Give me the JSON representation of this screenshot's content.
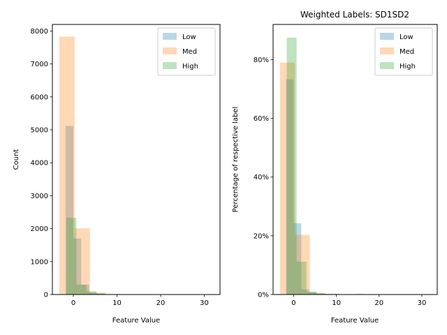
{
  "chart_data": [
    {
      "type": "bar",
      "subtype": "histogram",
      "title": "",
      "xlabel": "Feature Value",
      "ylabel": "Count",
      "xlim": [
        -4.8,
        33.6
      ],
      "ylim": [
        0,
        8200
      ],
      "xticks": [
        0,
        10,
        20,
        30
      ],
      "xtick_labels": [
        "0",
        "10",
        "20",
        "30"
      ],
      "yticks": [
        0,
        1000,
        2000,
        3000,
        4000,
        5000,
        6000,
        7000,
        8000
      ],
      "ytick_labels": [
        "0",
        "1000",
        "2000",
        "3000",
        "4000",
        "5000",
        "6000",
        "7000",
        "8000"
      ],
      "legend": "top-right",
      "series": [
        {
          "name": "Low",
          "color": "#1f77b4",
          "alpha": 0.3,
          "bin_edges": [
            -1.8,
            0.0,
            1.8,
            3.6,
            5.4,
            7.2,
            9.0,
            10.8,
            12.6,
            14.4,
            16.2,
            18.0
          ],
          "values": [
            5120,
            1700,
            300,
            60,
            25,
            10,
            8,
            5,
            4,
            3,
            2
          ]
        },
        {
          "name": "Med",
          "color": "#ff7f0e",
          "alpha": 0.3,
          "bin_edges": [
            -3.2,
            0.3,
            3.8,
            7.3,
            10.8,
            14.3,
            17.8,
            21.3,
            24.8,
            28.3,
            31.8
          ],
          "values": [
            7830,
            2010,
            60,
            15,
            5,
            3,
            2,
            1,
            1,
            1
          ]
        },
        {
          "name": "High",
          "color": "#2ca02c",
          "alpha": 0.3,
          "bin_edges": [
            -1.6,
            0.7,
            3.0,
            5.3,
            7.6,
            9.9,
            12.2,
            14.5
          ],
          "values": [
            2330,
            300,
            100,
            30,
            10,
            5,
            3
          ]
        }
      ]
    },
    {
      "type": "bar",
      "subtype": "histogram",
      "title": "Weighted Labels: SD1SD2",
      "xlabel": "Feature Value",
      "ylabel": "Percentage of respective label",
      "xlim": [
        -4.8,
        33.6
      ],
      "ylim": [
        0,
        0.92
      ],
      "xticks": [
        0,
        10,
        20,
        30
      ],
      "xtick_labels": [
        "0",
        "10",
        "20",
        "30"
      ],
      "yticks": [
        0,
        0.2,
        0.4,
        0.6,
        0.8
      ],
      "ytick_labels": [
        "0%",
        "20%",
        "40%",
        "60%",
        "80%"
      ],
      "legend": "top-right",
      "series": [
        {
          "name": "Low",
          "color": "#1f77b4",
          "alpha": 0.3,
          "bin_edges": [
            -1.8,
            0.0,
            1.8,
            3.6,
            5.4,
            7.2,
            9.0,
            10.8,
            12.6,
            14.4,
            16.2,
            18.0
          ],
          "values": [
            0.733,
            0.243,
            0.018,
            0.009,
            0.004,
            0.002,
            0.002,
            0.001,
            0.001,
            0.002,
            0.001
          ]
        },
        {
          "name": "Med",
          "color": "#ff7f0e",
          "alpha": 0.3,
          "bin_edges": [
            -3.2,
            0.3,
            3.8,
            7.3,
            10.8,
            14.3,
            17.8,
            21.3,
            24.8,
            28.3,
            31.8
          ],
          "values": [
            0.79,
            0.203,
            0.006,
            0.002,
            0.001,
            0.001,
            0.001,
            0.0,
            0.0,
            0.0
          ]
        },
        {
          "name": "High",
          "color": "#2ca02c",
          "alpha": 0.3,
          "bin_edges": [
            -1.6,
            0.7,
            3.0,
            5.3,
            7.6,
            9.9,
            12.2,
            14.5
          ],
          "values": [
            0.875,
            0.112,
            0.009,
            0.003,
            0.001,
            0.001,
            0.0
          ]
        }
      ]
    }
  ]
}
